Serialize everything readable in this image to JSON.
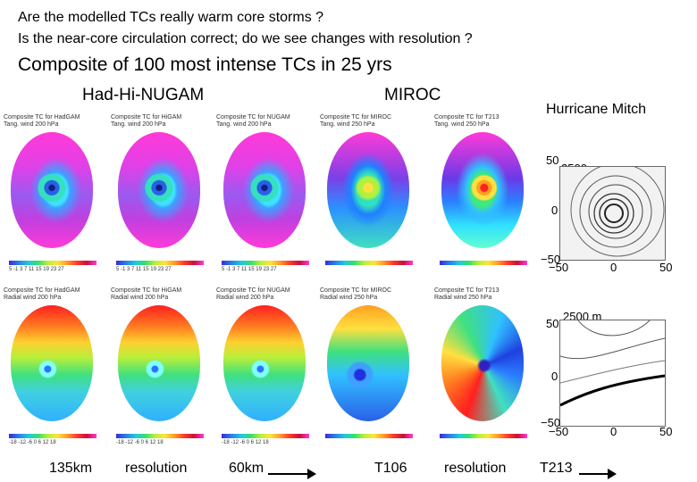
{
  "questions": [
    "Are the modelled TCs really warm core storms ?",
    "Is the near-core circulation correct; do we see changes with resolution ?"
  ],
  "heading": "Composite of 100 most intense TCs in 25 yrs",
  "groups": {
    "had": "Had-Hi-NUGAM",
    "miroc": "MIROC",
    "mitch": "Hurricane Mitch"
  },
  "top_panels": [
    {
      "line1": "Composite TC for HadGAM",
      "line2": "Tang. wind 200 hPa"
    },
    {
      "line1": "Composite TC for HiGAM",
      "line2": "Tang. wind 200 hPa"
    },
    {
      "line1": "Composite TC for NUGAM",
      "line2": "Tang. wind 200 hPa"
    },
    {
      "line1": "Composite TC for MIROC",
      "line2": "Tang. wind 250 hPa"
    },
    {
      "line1": "Composite TC for T213",
      "line2": "Tang. wind 250 hPa"
    }
  ],
  "bottom_panels": [
    {
      "line1": "Composite TC for HadGAM",
      "line2": "Radial wind 200 hPa"
    },
    {
      "line1": "Composite TC for HiGAM",
      "line2": "Radial wind 200 hPa"
    },
    {
      "line1": "Composite TC for NUGAM",
      "line2": "Radial wind 200 hPa"
    },
    {
      "line1": "Composite TC for MIROC",
      "line2": "Radial wind 250 hPa"
    },
    {
      "line1": "Composite TC for T213",
      "line2": "Radial wind 250 hPa"
    }
  ],
  "tang_scale": "5 -1 3 7 11 15 19 23 27",
  "rad_scale": "-18 -12 -6 0 6 12 18",
  "mitch": {
    "top_label": "2500 m",
    "bottom_label": "2500 m",
    "y_top": "50",
    "y_mid": "0",
    "y_bot": "−50",
    "x_left": "−50",
    "x_mid": "0",
    "x_right": "50"
  },
  "bottom_row": {
    "had_left": "135km",
    "had_mid": "resolution",
    "had_right": "60km",
    "miroc_left": "T106",
    "miroc_mid": "resolution",
    "miroc_right": "T213"
  }
}
